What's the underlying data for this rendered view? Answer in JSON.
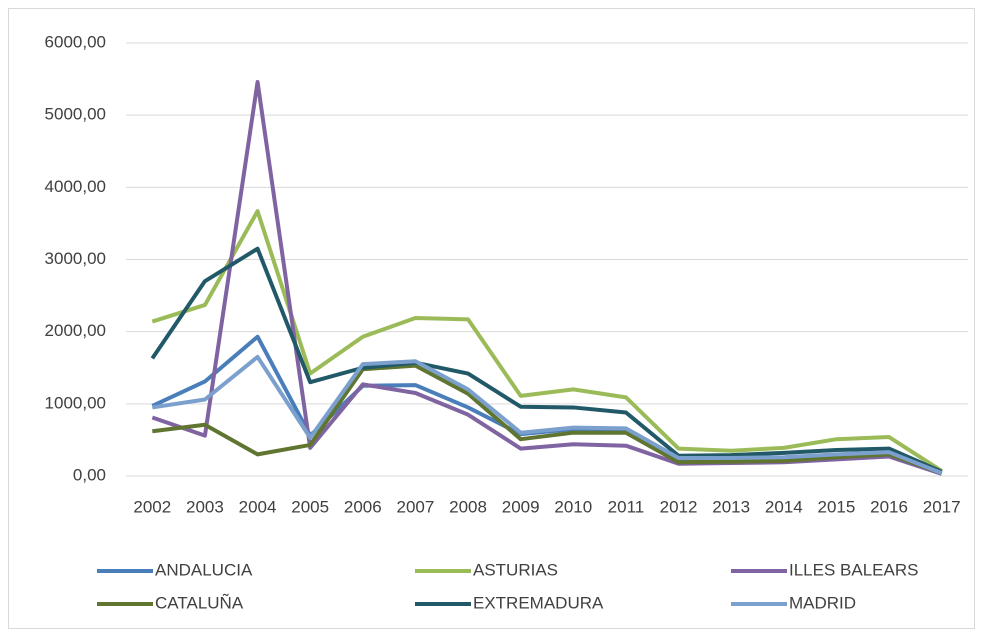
{
  "chart_data": {
    "type": "line",
    "categories": [
      "2002",
      "2003",
      "2004",
      "2005",
      "2006",
      "2007",
      "2008",
      "2009",
      "2010",
      "2011",
      "2012",
      "2013",
      "2014",
      "2015",
      "2016",
      "2017"
    ],
    "series": [
      {
        "name": "ANDALUCIA",
        "color": "#4a7ebb",
        "values": [
          970,
          1310,
          1930,
          560,
          1250,
          1260,
          950,
          580,
          650,
          640,
          230,
          240,
          250,
          290,
          320,
          40
        ]
      },
      {
        "name": "ASTURIAS",
        "color": "#9bbb59",
        "values": [
          2140,
          2370,
          3670,
          1420,
          1930,
          2190,
          2170,
          1110,
          1200,
          1090,
          380,
          350,
          390,
          510,
          540,
          70
        ]
      },
      {
        "name": "ILLES BALEARS",
        "color": "#8064a2",
        "values": [
          810,
          560,
          5460,
          390,
          1270,
          1150,
          850,
          380,
          440,
          420,
          170,
          180,
          190,
          230,
          270,
          30
        ]
      },
      {
        "name": "CATALUÑA",
        "color": "#5f7530",
        "values": [
          620,
          710,
          300,
          430,
          1480,
          1530,
          1140,
          510,
          600,
          600,
          190,
          200,
          210,
          260,
          300,
          40
        ]
      },
      {
        "name": "EXTREMADURA",
        "color": "#215968",
        "values": [
          1630,
          2700,
          3150,
          1300,
          1500,
          1570,
          1420,
          960,
          950,
          880,
          280,
          290,
          320,
          360,
          380,
          60
        ]
      },
      {
        "name": "MADRID",
        "color": "#7ba0cd",
        "values": [
          950,
          1060,
          1650,
          530,
          1550,
          1590,
          1200,
          600,
          670,
          660,
          250,
          250,
          260,
          300,
          330,
          40
        ]
      }
    ],
    "ylim": [
      0,
      6000
    ],
    "yticks": [
      {
        "value": 0,
        "label": "0,00"
      },
      {
        "value": 1000,
        "label": "1000,00"
      },
      {
        "value": 2000,
        "label": "2000,00"
      },
      {
        "value": 3000,
        "label": "3000,00"
      },
      {
        "value": 4000,
        "label": "4000,00"
      },
      {
        "value": 5000,
        "label": "5000,00"
      },
      {
        "value": 6000,
        "label": "6000,00"
      }
    ],
    "grid": true,
    "legend": "bottom"
  }
}
